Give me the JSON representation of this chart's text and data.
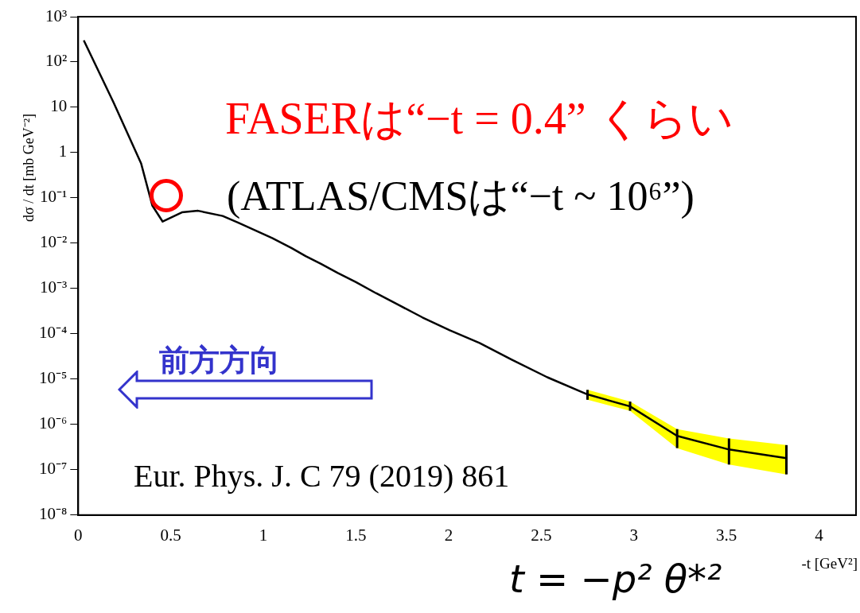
{
  "chart_data": {
    "type": "line",
    "xlabel": "-t [GeV²]",
    "ylabel": "dσ / dt [mb GeV⁻²]",
    "xlim": [
      0,
      4.2
    ],
    "xticks": [
      0,
      0.5,
      1,
      1.5,
      2,
      2.5,
      3,
      3.5,
      4
    ],
    "ylim": [
      1e-08,
      1000
    ],
    "log": "y",
    "yticks": [
      {
        "value": 1e-08,
        "label": "10⁻⁸"
      },
      {
        "value": 1e-07,
        "label": "10⁻⁷"
      },
      {
        "value": 1e-06,
        "label": "10⁻⁶"
      },
      {
        "value": 1e-05,
        "label": "10⁻⁵"
      },
      {
        "value": 0.0001,
        "label": "10⁻⁴"
      },
      {
        "value": 0.001,
        "label": "10⁻³"
      },
      {
        "value": 0.01,
        "label": "10⁻²"
      },
      {
        "value": 0.1,
        "label": "10⁻¹"
      },
      {
        "value": 1,
        "label": "1"
      },
      {
        "value": 10,
        "label": "10"
      },
      {
        "value": 100,
        "label": "10²"
      },
      {
        "value": 1000,
        "label": "10³"
      }
    ],
    "grid": false,
    "legend": false,
    "marker": "none",
    "line_style": "solid",
    "series": [
      {
        "color": "#000000",
        "x": [
          0.03,
          0.19,
          0.34,
          0.4,
          0.456,
          0.56,
          0.647,
          0.78,
          0.867,
          1.047,
          1.153,
          1.228,
          1.311,
          1.402,
          1.498,
          1.608,
          1.727,
          1.859,
          2.006,
          2.167,
          2.341,
          2.533,
          2.75,
          2.98,
          3.234,
          3.514,
          3.824
        ],
        "values": [
          300,
          13,
          0.57,
          0.068,
          0.03,
          0.048,
          0.052,
          0.04,
          0.028,
          0.013,
          0.0078,
          0.0052,
          0.0035,
          0.0022,
          0.0014,
          0.00079,
          0.00044,
          0.00023,
          0.00012,
          6.3e-05,
          2.7e-05,
          1.1e-05,
          4.6e-06,
          2.5e-06,
          5.6e-07,
          2.8e-07,
          1.8e-07
        ],
        "lower": [
          null,
          null,
          null,
          null,
          null,
          null,
          null,
          null,
          null,
          null,
          null,
          null,
          null,
          null,
          null,
          null,
          null,
          null,
          null,
          null,
          null,
          null,
          3.5e-06,
          2e-06,
          3e-07,
          1.3e-07,
          7.9e-08
        ],
        "upper": [
          null,
          null,
          null,
          null,
          null,
          null,
          null,
          null,
          null,
          null,
          null,
          null,
          null,
          null,
          null,
          null,
          null,
          null,
          null,
          null,
          null,
          null,
          5.8e-06,
          3.2e-06,
          7.9e-07,
          4.9e-07,
          3.5e-07
        ],
        "errors": [
          null,
          null,
          null,
          null,
          null,
          null,
          null,
          null,
          null,
          null,
          null,
          null,
          null,
          null,
          null,
          null,
          null,
          null,
          null,
          null,
          null,
          null,
          [
            3.5e-06,
            5.8e-06
          ],
          [
            2e-06,
            3.2e-06
          ],
          [
            3e-07,
            7.9e-07
          ],
          [
            1.3e-07,
            4.9e-07
          ],
          [
            7.9e-08,
            3.5e-07
          ]
        ]
      }
    ],
    "annotations": [
      "FASERは“−t = 0.4” くらい",
      "(ATLAS/CMSは“−t ~ 10⁶”)",
      "前方方向",
      "Eur. Phys. J. C 79 (2019)  861",
      "t = −p² θ*²"
    ]
  }
}
